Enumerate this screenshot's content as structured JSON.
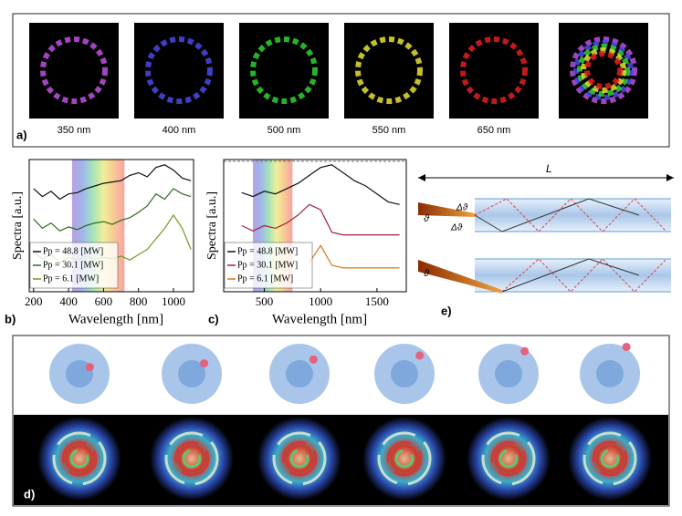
{
  "panel_a": {
    "label": "a)",
    "wavelengths": [
      "350 nm",
      "400 nm",
      "500 nm",
      "550 nm",
      "650 nm"
    ]
  },
  "chart_data": [
    {
      "type": "line",
      "label": "b)",
      "xlabel": "Wavelength [nm]",
      "ylabel": "Spectra [a.u.]",
      "xlim": [
        175,
        1115
      ],
      "xticks": [
        200,
        400,
        600,
        800,
        1000
      ],
      "ylim": [
        0,
        10
      ],
      "visible_band": [
        420,
        720
      ],
      "x": [
        200,
        250,
        300,
        350,
        400,
        450,
        500,
        550,
        600,
        650,
        700,
        750,
        800,
        850,
        900,
        950,
        1000,
        1050,
        1100
      ],
      "series": [
        {
          "name": "Pp = 48.8 [MW]",
          "color": "#111111",
          "values": [
            7.8,
            7.2,
            7.6,
            7.0,
            7.4,
            7.5,
            7.8,
            8.0,
            8.2,
            8.3,
            8.4,
            8.8,
            9.0,
            8.7,
            9.4,
            9.6,
            9.2,
            8.6,
            8.4
          ]
        },
        {
          "name": "Pp = 30.1 [MW]",
          "color": "#2e6b1e",
          "values": [
            5.5,
            4.8,
            5.2,
            4.6,
            4.9,
            4.7,
            5.0,
            5.2,
            5.3,
            5.1,
            5.4,
            5.6,
            6.0,
            6.5,
            7.4,
            7.0,
            7.8,
            7.4,
            7.2
          ]
        },
        {
          "name": "Pp = 6.1 [MW]",
          "color": "#6e9a1a",
          "values": [
            3.0,
            2.5,
            2.8,
            2.2,
            2.6,
            2.4,
            2.7,
            2.5,
            2.6,
            2.5,
            2.7,
            2.4,
            2.8,
            3.2,
            4.0,
            4.8,
            5.8,
            4.8,
            3.2
          ]
        }
      ]
    },
    {
      "type": "line",
      "label": "c)",
      "xlabel": "Wavelength [nm]",
      "ylabel": "Spectra [a.u.]",
      "xlim": [
        140,
        1760
      ],
      "xticks": [
        500,
        1000,
        1500
      ],
      "ylim": [
        0,
        10
      ],
      "visible_band": [
        400,
        750
      ],
      "x": [
        300,
        400,
        500,
        600,
        700,
        800,
        900,
        1000,
        1100,
        1200,
        1300,
        1400,
        1500,
        1600,
        1700
      ],
      "series": [
        {
          "name": "Pp = 48.8 [MW]",
          "color": "#111111",
          "values": [
            7.5,
            7.2,
            7.6,
            7.4,
            7.8,
            8.2,
            8.8,
            9.4,
            9.6,
            9.0,
            8.4,
            8.0,
            7.4,
            6.8,
            6.6
          ]
        },
        {
          "name": "Pp = 30.1 [MW]",
          "color": "#a0203a",
          "values": [
            5.0,
            4.6,
            5.0,
            4.8,
            5.2,
            5.8,
            6.6,
            6.2,
            4.5,
            4.3,
            4.3,
            4.3,
            4.3,
            4.3,
            4.3
          ]
        },
        {
          "name": "Pp = 6.1 [MW]",
          "color": "#d9741a",
          "values": [
            null,
            null,
            null,
            null,
            null,
            null,
            2.2,
            3.5,
            2.0,
            1.8,
            1.8,
            1.8,
            1.8,
            1.8,
            1.8
          ]
        }
      ]
    }
  ],
  "panel_d": {
    "label": "d)"
  },
  "panel_e": {
    "label": "e)",
    "length": "L",
    "angle": "ϑ",
    "spread": "Δϑ",
    "spread2": "Δϑ",
    "angle2": "ϑ"
  }
}
